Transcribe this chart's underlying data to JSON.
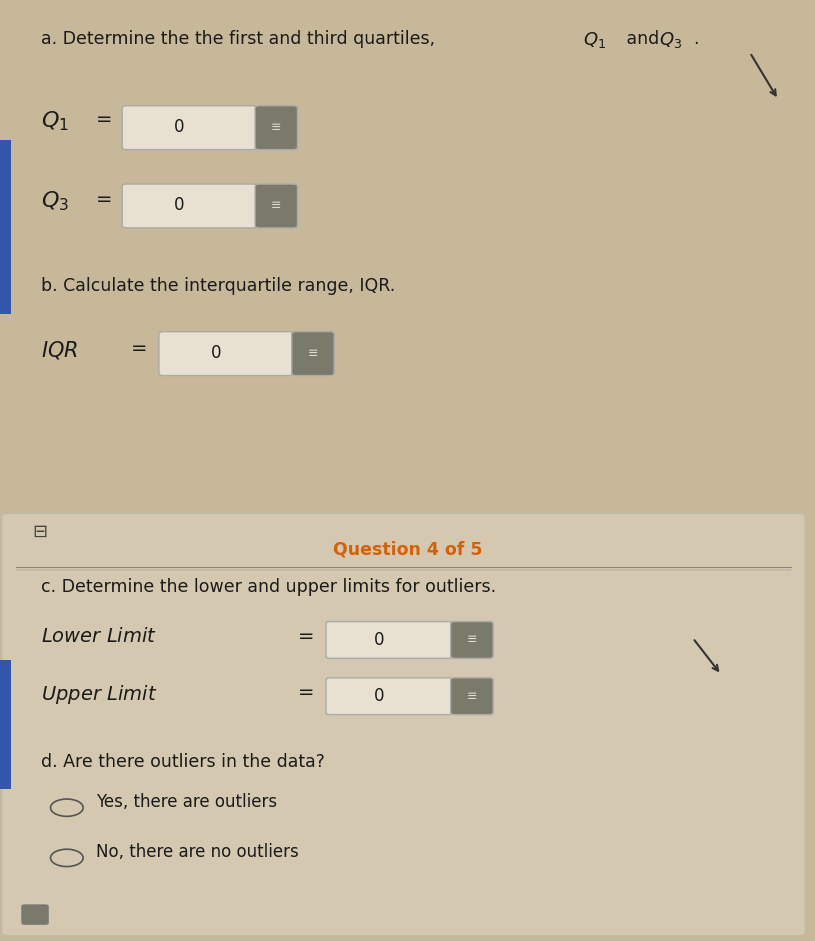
{
  "bg_color_top": "#c8b89a",
  "bg_color_bottom": "#c8b89a",
  "text_color_black": "#1a1a1a",
  "text_color_orange": "#d4600a",
  "title_text": "Question 4 of 5",
  "part_a_header": "a. Determine the the first and third quartiles, ",
  "q1_value": "0",
  "q3_value": "0",
  "part_b_header": "b. Calculate the interquartile range, IQR.",
  "iqr_value": "0",
  "part_c_header": "c. Determine the lower and upper limits for outliers.",
  "lower_label": "Lower Limit",
  "upper_label": "Upper Limit",
  "lower_value": "0",
  "upper_value": "0",
  "part_d_header": "d. Are there outliers in the data?",
  "option_yes": "Yes, there are outliers",
  "option_no": "No, there are no outliers",
  "separator_color": "#888888",
  "input_box_color": "#e8e0d0",
  "input_border_color": "#aaaaaa",
  "icon_box_color": "#7a7a6a",
  "left_bar_color": "#3355aa",
  "radio_color": "#555555",
  "panel_bg": "#d4c9b0"
}
